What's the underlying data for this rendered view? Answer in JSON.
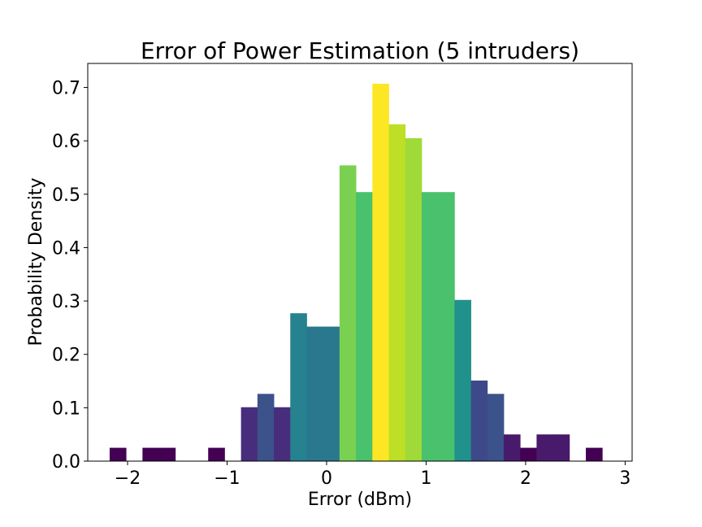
{
  "chart_data": {
    "type": "bar",
    "title": "Error of Power Estimation (5 intruders)",
    "xlabel": "Error (dBm)",
    "ylabel": "Probability Density",
    "xlim": [
      -2.4,
      3.07
    ],
    "ylim": [
      0,
      0.745
    ],
    "grid": false,
    "legend": "none",
    "bin_width": 0.165,
    "x_ticks": [
      {
        "value": -2,
        "label": "−2"
      },
      {
        "value": -1,
        "label": "−1"
      },
      {
        "value": 0,
        "label": "0"
      },
      {
        "value": 1,
        "label": "1"
      },
      {
        "value": 2,
        "label": "2"
      },
      {
        "value": 3,
        "label": "3"
      }
    ],
    "y_ticks": [
      {
        "value": 0.0,
        "label": "0.0"
      },
      {
        "value": 0.1,
        "label": "0.1"
      },
      {
        "value": 0.2,
        "label": "0.2"
      },
      {
        "value": 0.3,
        "label": "0.3"
      },
      {
        "value": 0.4,
        "label": "0.4"
      },
      {
        "value": 0.5,
        "label": "0.5"
      },
      {
        "value": 0.6,
        "label": "0.6"
      },
      {
        "value": 0.7,
        "label": "0.7"
      }
    ],
    "bins": [
      {
        "x0": -2.18,
        "density": 0.025,
        "color": "#440154"
      },
      {
        "x0": -2.015,
        "density": 0.0,
        "color": "#440154"
      },
      {
        "x0": -1.85,
        "density": 0.025,
        "color": "#440154"
      },
      {
        "x0": -1.685,
        "density": 0.025,
        "color": "#440154"
      },
      {
        "x0": -1.52,
        "density": 0.0,
        "color": "#440154"
      },
      {
        "x0": -1.355,
        "density": 0.0,
        "color": "#440154"
      },
      {
        "x0": -1.19,
        "density": 0.025,
        "color": "#440154"
      },
      {
        "x0": -1.025,
        "density": 0.0,
        "color": "#440154"
      },
      {
        "x0": -0.86,
        "density": 0.101,
        "color": "#472d7b"
      },
      {
        "x0": -0.695,
        "density": 0.126,
        "color": "#3b528b"
      },
      {
        "x0": -0.53,
        "density": 0.101,
        "color": "#472d7b"
      },
      {
        "x0": -0.365,
        "density": 0.277,
        "color": "#26828e"
      },
      {
        "x0": -0.2,
        "density": 0.252,
        "color": "#2a788e"
      },
      {
        "x0": -0.035,
        "density": 0.252,
        "color": "#2a788e"
      },
      {
        "x0": 0.13,
        "density": 0.554,
        "color": "#7ad151"
      },
      {
        "x0": 0.295,
        "density": 0.504,
        "color": "#4ac16d"
      },
      {
        "x0": 0.46,
        "density": 0.707,
        "color": "#fde725"
      },
      {
        "x0": 0.625,
        "density": 0.631,
        "color": "#bddf26"
      },
      {
        "x0": 0.79,
        "density": 0.605,
        "color": "#a0da39"
      },
      {
        "x0": 0.955,
        "density": 0.504,
        "color": "#4ac16d"
      },
      {
        "x0": 1.12,
        "density": 0.504,
        "color": "#4ac16d"
      },
      {
        "x0": 1.285,
        "density": 0.302,
        "color": "#21918c"
      },
      {
        "x0": 1.45,
        "density": 0.151,
        "color": "#3e4989"
      },
      {
        "x0": 1.615,
        "density": 0.126,
        "color": "#3b528b"
      },
      {
        "x0": 1.78,
        "density": 0.05,
        "color": "#481a6c"
      },
      {
        "x0": 1.945,
        "density": 0.025,
        "color": "#440154"
      },
      {
        "x0": 2.11,
        "density": 0.05,
        "color": "#481a6c"
      },
      {
        "x0": 2.275,
        "density": 0.05,
        "color": "#481a6c"
      },
      {
        "x0": 2.44,
        "density": 0.0,
        "color": "#440154"
      },
      {
        "x0": 2.605,
        "density": 0.025,
        "color": "#440154"
      }
    ]
  }
}
